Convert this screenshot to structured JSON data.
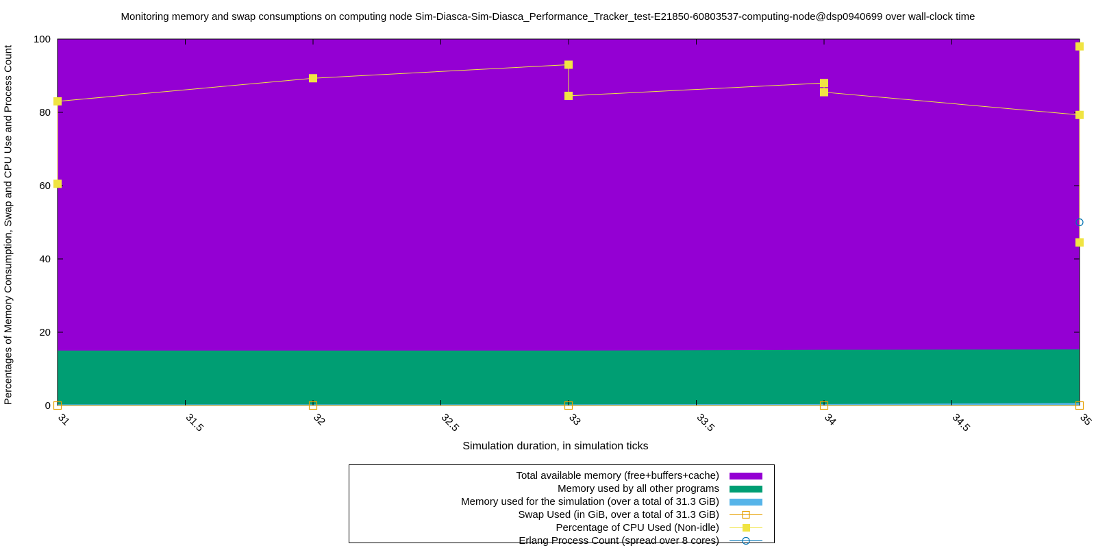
{
  "chart_data": {
    "type": "area",
    "title": "Monitoring memory and swap consumptions on computing node Sim-Diasca-Sim-Diasca_Performance_Tracker_test-E21850-60803537-computing-node@dsp0940699 over wall-clock time",
    "xlabel": "Simulation duration, in simulation ticks",
    "ylabel": "Percentages of Memory Consumption, Swap and CPU Use and Process Count",
    "xlim": [
      31,
      35
    ],
    "ylim": [
      0,
      100
    ],
    "xticks": [
      "31",
      "31.5",
      "32",
      "32.5",
      "33",
      "33.5",
      "34",
      "34.5",
      "35"
    ],
    "yticks": [
      "0",
      "20",
      "40",
      "60",
      "80",
      "100"
    ],
    "grid": false,
    "legend_position": "bottom-center",
    "series": [
      {
        "name": "Total available memory (free+buffers+cache)",
        "kind": "stacked-area",
        "color": "#9400d3",
        "x": [
          31,
          32,
          33,
          34,
          35
        ],
        "y": [
          100,
          100,
          100,
          100,
          100
        ]
      },
      {
        "name": "Memory used by all other programs",
        "kind": "stacked-area",
        "color": "#009e73",
        "x": [
          31,
          32,
          33,
          34,
          35
        ],
        "y": [
          15,
          15,
          15,
          15.2,
          15.3
        ]
      },
      {
        "name": "Memory used for the simulation (over a total of 31.3 GiB)",
        "kind": "stacked-area",
        "color": "#56b4e9",
        "x": [
          31,
          32,
          33,
          34,
          35
        ],
        "y": [
          0.3,
          0.3,
          0.3,
          0.4,
          0.7
        ]
      },
      {
        "name": "Swap Used (in GiB, over a total of 31.3 GiB)",
        "kind": "line-points",
        "marker": "open-square",
        "color": "#e69f00",
        "x": [
          31,
          32,
          33,
          34,
          35
        ],
        "y": [
          0,
          0,
          0,
          0,
          0
        ]
      },
      {
        "name": "Percentage of CPU Used (Non-idle)",
        "kind": "line-points",
        "marker": "filled-square",
        "color": "#f0e442",
        "x": [
          31,
          31,
          32,
          33,
          33,
          34,
          34,
          35,
          35,
          35
        ],
        "y": [
          60.5,
          83,
          89.3,
          93,
          84.5,
          88,
          85.5,
          79.3,
          44.5,
          98
        ]
      },
      {
        "name": "Erlang Process Count (spread over 8 cores)",
        "kind": "line-points",
        "marker": "open-circle",
        "color": "#0072b2",
        "x": [
          35
        ],
        "y": [
          50
        ]
      }
    ]
  }
}
